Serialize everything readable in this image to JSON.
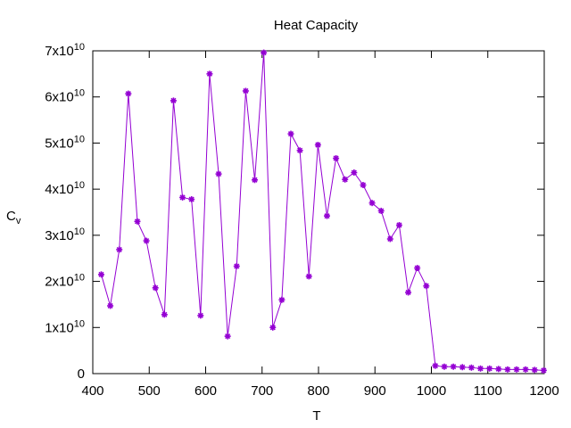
{
  "chart_data": {
    "type": "line",
    "title": "Heat Capacity",
    "xlabel": "T",
    "ylabel": {
      "main": "C",
      "sub": "v"
    },
    "xlim": [
      400,
      1200
    ],
    "ylim": [
      0,
      70000000000
    ],
    "x_ticks": [
      400,
      500,
      600,
      700,
      800,
      900,
      1000,
      1100,
      1200
    ],
    "x_tick_labels": [
      "400",
      "500",
      "600",
      "700",
      "800",
      "900",
      "1000",
      "1100",
      "1200"
    ],
    "y_ticks": [
      0,
      10000000000,
      20000000000,
      30000000000,
      40000000000,
      50000000000,
      60000000000,
      70000000000
    ],
    "y_tick_labels": [
      {
        "mantissa": "0",
        "exponent": ""
      },
      {
        "mantissa": "1x10",
        "exponent": "10"
      },
      {
        "mantissa": "2x10",
        "exponent": "10"
      },
      {
        "mantissa": "3x10",
        "exponent": "10"
      },
      {
        "mantissa": "4x10",
        "exponent": "10"
      },
      {
        "mantissa": "5x10",
        "exponent": "10"
      },
      {
        "mantissa": "6x10",
        "exponent": "10"
      },
      {
        "mantissa": "7x10",
        "exponent": "10"
      }
    ],
    "grid": false,
    "series": [
      {
        "color": "#9400d3",
        "marker": "asterisk",
        "x": [
          415,
          431,
          447,
          463,
          479,
          495,
          511,
          527,
          543,
          559,
          575,
          591,
          607,
          623,
          639,
          655,
          671,
          687,
          703,
          719,
          735,
          751,
          767,
          783,
          799,
          815,
          831,
          847,
          863,
          879,
          895,
          911,
          927,
          943,
          959,
          975,
          991,
          1007,
          1023,
          1039,
          1055,
          1071,
          1087,
          1103,
          1119,
          1135,
          1151,
          1167,
          1183,
          1199
        ],
        "y": [
          21500000000,
          14700000000,
          26900000000,
          60700000000,
          33000000000,
          28800000000,
          18600000000,
          12800000000,
          59200000000,
          38200000000,
          37800000000,
          12600000000,
          65000000000,
          43300000000,
          8100000000,
          23300000000,
          61300000000,
          42000000000,
          69600000000,
          10000000000,
          16000000000,
          52000000000,
          48400000000,
          21100000000,
          49600000000,
          34200000000,
          46700000000,
          42100000000,
          43600000000,
          40900000000,
          37000000000,
          35300000000,
          29200000000,
          32200000000,
          17600000000,
          22900000000,
          19000000000,
          1700000000,
          1500000000,
          1500000000,
          1400000000,
          1300000000,
          1100000000,
          1100000000,
          1000000000,
          900000000,
          900000000,
          900000000,
          800000000,
          700000000
        ]
      }
    ]
  }
}
